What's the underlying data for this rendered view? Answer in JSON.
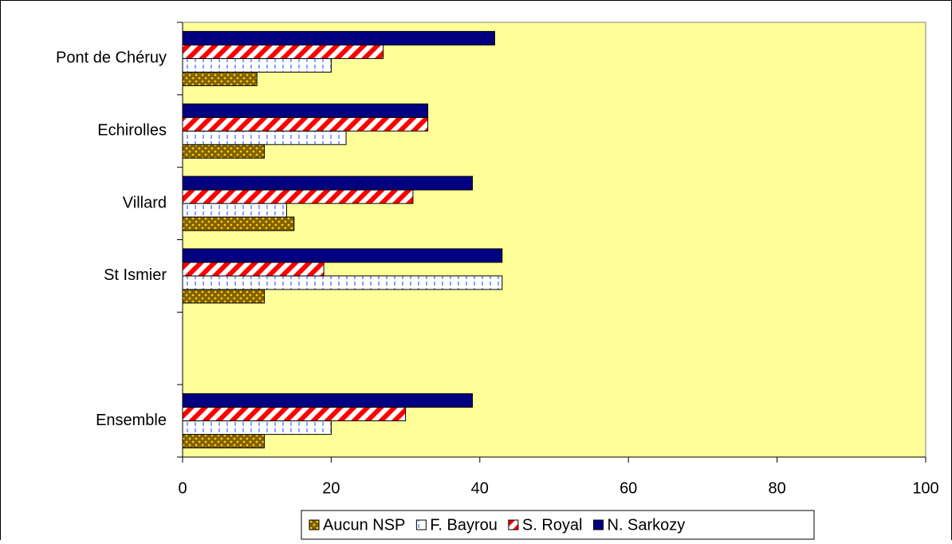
{
  "chart_data": {
    "type": "bar",
    "orientation": "horizontal",
    "categories": [
      "Pont de Chéruy",
      "Echirolles",
      "Villard",
      "St Ismier",
      null,
      "Ensemble"
    ],
    "series": [
      {
        "name": "Aucun NSP",
        "color": "#806000",
        "values": [
          10,
          11,
          15,
          11,
          null,
          11
        ]
      },
      {
        "name": "F. Bayrou",
        "color": "#3366ff",
        "values": [
          20,
          22,
          14,
          43,
          null,
          20
        ]
      },
      {
        "name": "S. Royal",
        "color": "#ff0000",
        "values": [
          27,
          33,
          31,
          19,
          null,
          30
        ]
      },
      {
        "name": "N. Sarkozy",
        "color": "#000080",
        "values": [
          42,
          33,
          39,
          43,
          null,
          39
        ]
      }
    ],
    "xlim": [
      0,
      100
    ],
    "xticks": [
      0,
      20,
      40,
      60,
      80,
      100
    ],
    "legend": "bottom"
  }
}
